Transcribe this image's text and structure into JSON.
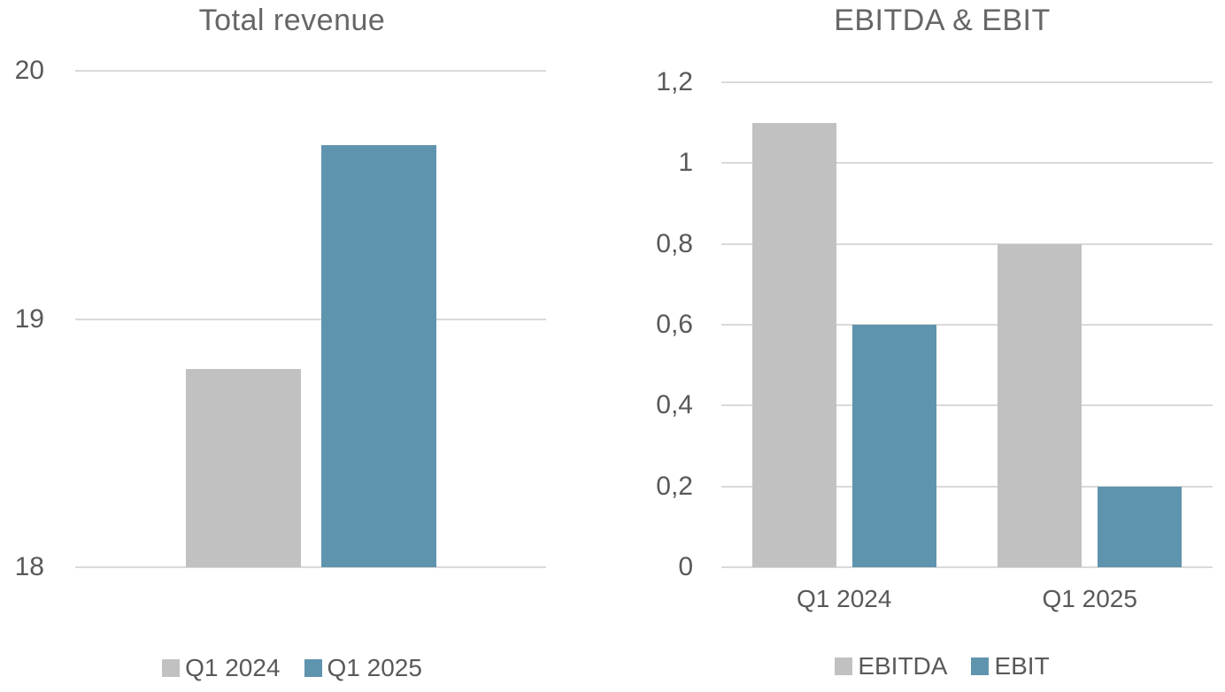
{
  "page": {
    "background": "#ffffff"
  },
  "colors": {
    "bar_gray": "#c1c1c1",
    "bar_blue": "#5f94ae",
    "text": "#595959",
    "title_text": "#666666",
    "gridline": "#d9d9d9"
  },
  "chart_data": [
    {
      "type": "bar",
      "title": "Total revenue",
      "categories": [
        ""
      ],
      "series": [
        {
          "name": "Q1 2024",
          "values": [
            18.8
          ],
          "color": "#c1c1c1"
        },
        {
          "name": "Q1 2025",
          "values": [
            19.7
          ],
          "color": "#5f94ae"
        }
      ],
      "xlabel": "",
      "ylabel": "",
      "ylim": [
        18,
        20
      ],
      "yticks": [
        {
          "value": 20,
          "label": "20"
        },
        {
          "value": 19,
          "label": "19"
        },
        {
          "value": 18,
          "label": "18"
        }
      ],
      "grid": true,
      "show_category_labels": false,
      "legend_position": "bottom",
      "legend": [
        "Q1 2024",
        "Q1 2025"
      ]
    },
    {
      "type": "bar",
      "title": "EBITDA & EBIT",
      "categories": [
        "Q1 2024",
        "Q1 2025"
      ],
      "series": [
        {
          "name": "EBITDA",
          "values": [
            1.1,
            0.8
          ],
          "color": "#c1c1c1"
        },
        {
          "name": "EBIT",
          "values": [
            0.6,
            0.2
          ],
          "color": "#5f94ae"
        }
      ],
      "xlabel": "",
      "ylabel": "",
      "ylim": [
        0,
        1.2
      ],
      "yticks": [
        {
          "value": 1.2,
          "label": "1,2"
        },
        {
          "value": 1.0,
          "label": "1"
        },
        {
          "value": 0.8,
          "label": "0,8"
        },
        {
          "value": 0.6,
          "label": "0,6"
        },
        {
          "value": 0.4,
          "label": "0,4"
        },
        {
          "value": 0.2,
          "label": "0,2"
        },
        {
          "value": 0,
          "label": "0"
        }
      ],
      "grid": true,
      "show_category_labels": true,
      "legend_position": "bottom",
      "legend": [
        "EBITDA",
        "EBIT"
      ]
    }
  ]
}
